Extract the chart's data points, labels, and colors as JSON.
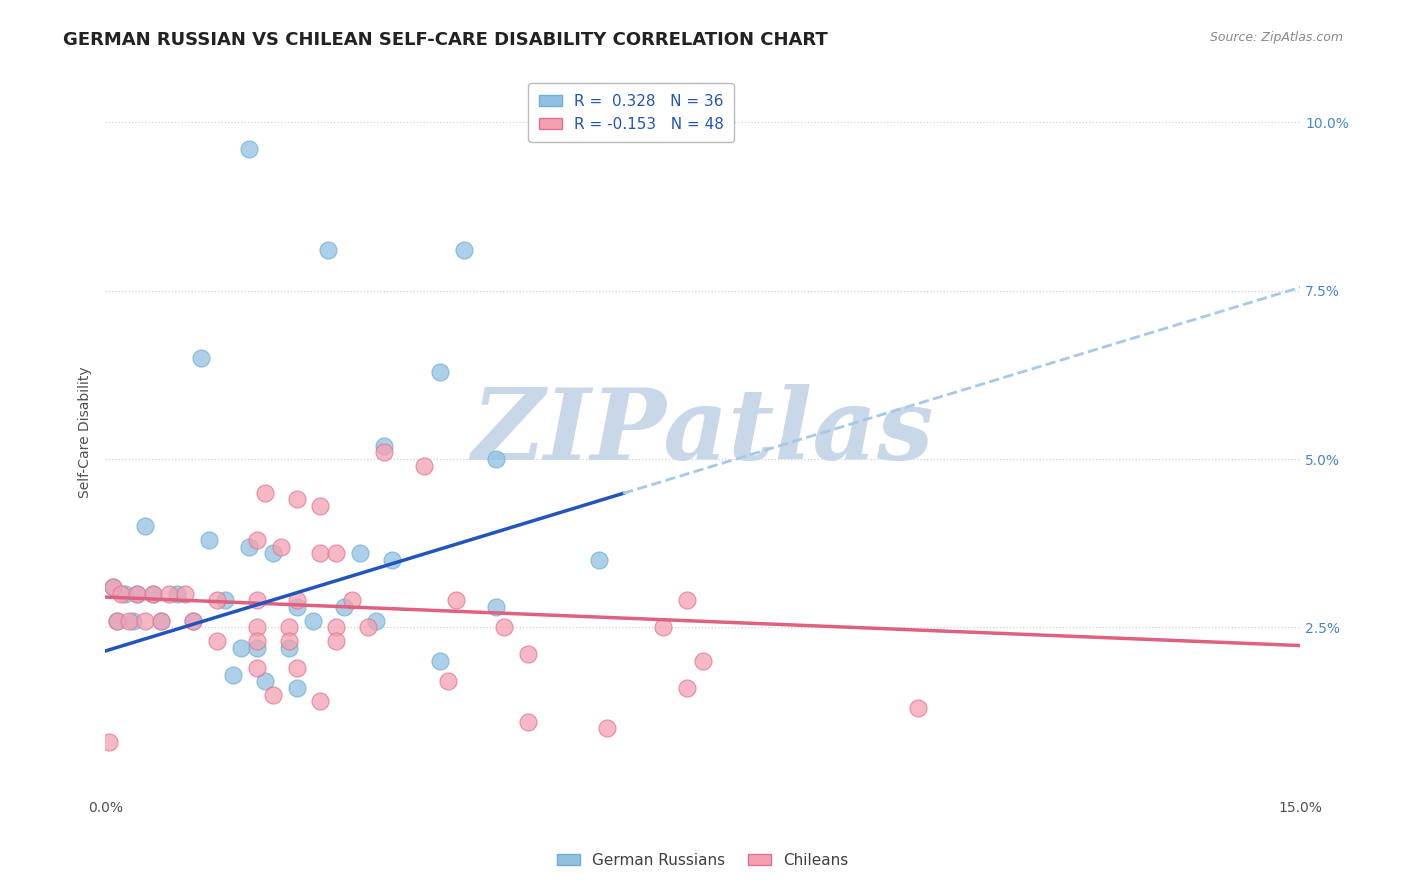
{
  "title": "GERMAN RUSSIAN VS CHILEAN SELF-CARE DISABILITY CORRELATION CHART",
  "source": "Source: ZipAtlas.com",
  "ylabel": "Self-Care Disability",
  "yticks": [
    2.5,
    5.0,
    7.5,
    10.0
  ],
  "ytick_labels": [
    "2.5%",
    "5.0%",
    "7.5%",
    "10.0%"
  ],
  "xlim": [
    0.0,
    15.0
  ],
  "ylim": [
    0.0,
    10.8
  ],
  "blue_R": 0.328,
  "blue_N": 36,
  "pink_R": -0.153,
  "pink_N": 48,
  "blue_color": "#92c0e0",
  "blue_edge": "#6baed6",
  "pink_color": "#f4a0b0",
  "pink_edge": "#e07090",
  "blue_scatter": [
    [
      1.8,
      9.6
    ],
    [
      2.8,
      8.1
    ],
    [
      4.5,
      8.1
    ],
    [
      1.2,
      6.5
    ],
    [
      4.2,
      6.3
    ],
    [
      3.5,
      5.2
    ],
    [
      4.9,
      5.0
    ],
    [
      0.5,
      4.0
    ],
    [
      1.3,
      3.8
    ],
    [
      1.8,
      3.7
    ],
    [
      2.1,
      3.6
    ],
    [
      3.2,
      3.6
    ],
    [
      3.6,
      3.5
    ],
    [
      6.2,
      3.5
    ],
    [
      0.1,
      3.1
    ],
    [
      0.25,
      3.0
    ],
    [
      0.4,
      3.0
    ],
    [
      0.6,
      3.0
    ],
    [
      0.9,
      3.0
    ],
    [
      1.5,
      2.9
    ],
    [
      2.4,
      2.8
    ],
    [
      3.0,
      2.8
    ],
    [
      4.9,
      2.8
    ],
    [
      0.15,
      2.6
    ],
    [
      0.35,
      2.6
    ],
    [
      0.7,
      2.6
    ],
    [
      1.1,
      2.6
    ],
    [
      2.6,
      2.6
    ],
    [
      3.4,
      2.6
    ],
    [
      1.7,
      2.2
    ],
    [
      1.9,
      2.2
    ],
    [
      2.3,
      2.2
    ],
    [
      4.2,
      2.0
    ],
    [
      1.6,
      1.8
    ],
    [
      2.0,
      1.7
    ],
    [
      2.4,
      1.6
    ]
  ],
  "pink_scatter": [
    [
      3.5,
      5.1
    ],
    [
      4.0,
      4.9
    ],
    [
      2.0,
      4.5
    ],
    [
      2.4,
      4.4
    ],
    [
      2.7,
      4.3
    ],
    [
      1.9,
      3.8
    ],
    [
      2.2,
      3.7
    ],
    [
      2.7,
      3.6
    ],
    [
      2.9,
      3.6
    ],
    [
      0.1,
      3.1
    ],
    [
      0.2,
      3.0
    ],
    [
      0.4,
      3.0
    ],
    [
      0.6,
      3.0
    ],
    [
      0.8,
      3.0
    ],
    [
      1.0,
      3.0
    ],
    [
      1.4,
      2.9
    ],
    [
      1.9,
      2.9
    ],
    [
      2.4,
      2.9
    ],
    [
      3.1,
      2.9
    ],
    [
      4.4,
      2.9
    ],
    [
      7.3,
      2.9
    ],
    [
      0.15,
      2.6
    ],
    [
      0.3,
      2.6
    ],
    [
      0.5,
      2.6
    ],
    [
      0.7,
      2.6
    ],
    [
      1.1,
      2.6
    ],
    [
      1.9,
      2.5
    ],
    [
      2.3,
      2.5
    ],
    [
      2.9,
      2.5
    ],
    [
      3.3,
      2.5
    ],
    [
      5.0,
      2.5
    ],
    [
      7.0,
      2.5
    ],
    [
      1.4,
      2.3
    ],
    [
      1.9,
      2.3
    ],
    [
      2.3,
      2.3
    ],
    [
      2.9,
      2.3
    ],
    [
      5.3,
      2.1
    ],
    [
      7.5,
      2.0
    ],
    [
      1.9,
      1.9
    ],
    [
      2.4,
      1.9
    ],
    [
      4.3,
      1.7
    ],
    [
      7.3,
      1.6
    ],
    [
      2.1,
      1.5
    ],
    [
      2.7,
      1.4
    ],
    [
      10.2,
      1.3
    ],
    [
      5.3,
      1.1
    ],
    [
      6.3,
      1.0
    ],
    [
      0.05,
      0.8
    ]
  ],
  "watermark": "ZIPatlas",
  "watermark_color": "#c8d8e8",
  "background_color": "#ffffff",
  "grid_color": "#cccccc",
  "title_fontsize": 13,
  "axis_label_fontsize": 10,
  "tick_fontsize": 10,
  "legend_fontsize": 11,
  "blue_line_color": "#2255bb",
  "blue_line_solid_end": 6.5,
  "pink_line_color": "#e06080",
  "dashed_line_color": "#a8c8e8",
  "blue_slope": 0.36,
  "blue_intercept": 2.15,
  "pink_slope": -0.048,
  "pink_intercept": 2.95
}
